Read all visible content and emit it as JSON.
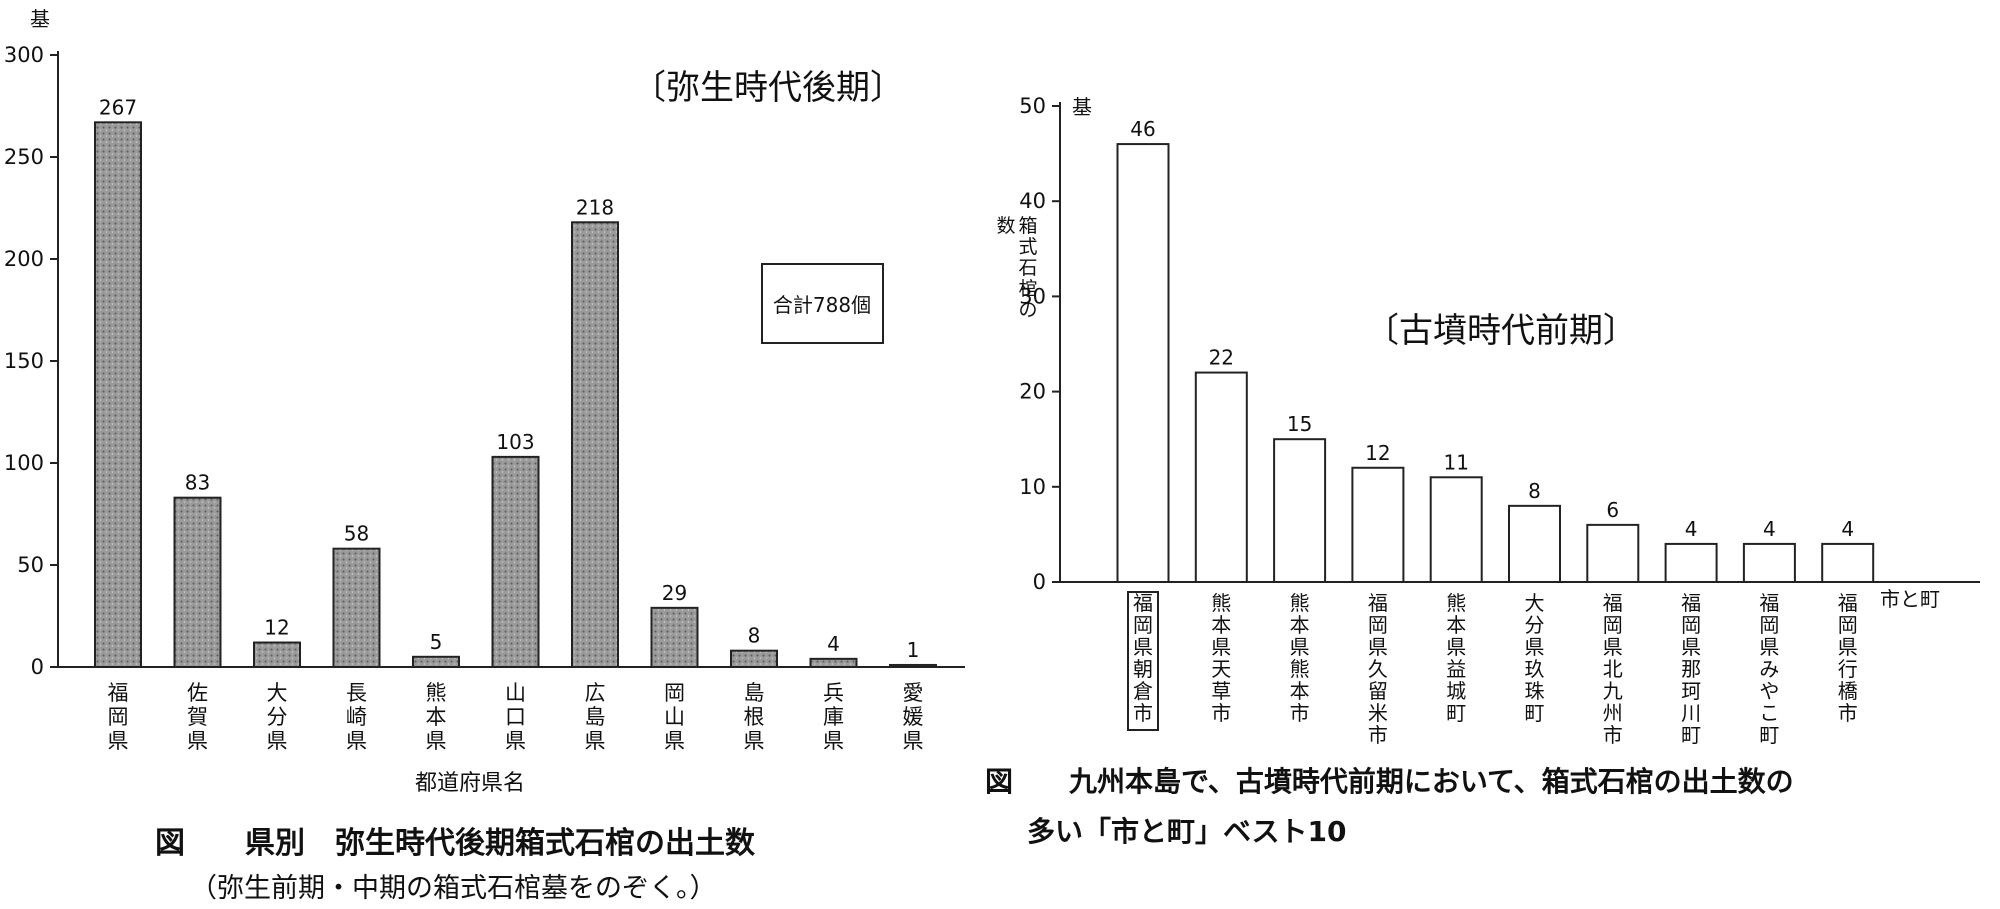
{
  "chart_data": [
    {
      "type": "bar",
      "title": "〔弥生時代後期〕",
      "unit_label": "基",
      "xlabel": "都道府県名",
      "ylabel": "",
      "ylim": [
        0,
        300
      ],
      "yticks": [
        0,
        50,
        100,
        150,
        200,
        250,
        300
      ],
      "categories": [
        "福岡県",
        "佐賀県",
        "大分県",
        "長崎県",
        "熊本県",
        "山口県",
        "広島県",
        "岡山県",
        "島根県",
        "兵庫県",
        "愛媛県"
      ],
      "values": [
        267,
        83,
        12,
        58,
        5,
        103,
        218,
        29,
        8,
        4,
        1
      ],
      "annotation": "合計788個",
      "bar_color": "#9a9a9a",
      "grid": false
    },
    {
      "type": "bar",
      "title": "〔古墳時代前期〕",
      "unit_label": "基",
      "xlabel": "市と町",
      "ylabel": "箱式石棺の数",
      "ylim": [
        0,
        50
      ],
      "yticks": [
        0,
        10,
        20,
        30,
        40,
        50
      ],
      "categories": [
        "福岡県朝倉市",
        "熊本県天草市",
        "熊本県熊本市",
        "福岡県久留米市",
        "熊本県益城町",
        "大分県玖珠町",
        "福岡県北九州市",
        "福岡県那珂川町",
        "福岡県みやこ町",
        "福岡県行橋市"
      ],
      "values": [
        46,
        22,
        15,
        12,
        11,
        8,
        6,
        4,
        4,
        4
      ],
      "highlight_index": 0,
      "bar_color": "#ffffff",
      "grid": false
    }
  ],
  "captions": {
    "left_main": "図　　県別　弥生時代後期箱式石棺の出土数",
    "left_sub": "（弥生前期・中期の箱式石棺墓をのぞく。）",
    "right_line1": "図　　九州本島で、古墳時代前期において、箱式石棺の出土数の",
    "right_line2": "多い「市と町」ベスト10"
  }
}
